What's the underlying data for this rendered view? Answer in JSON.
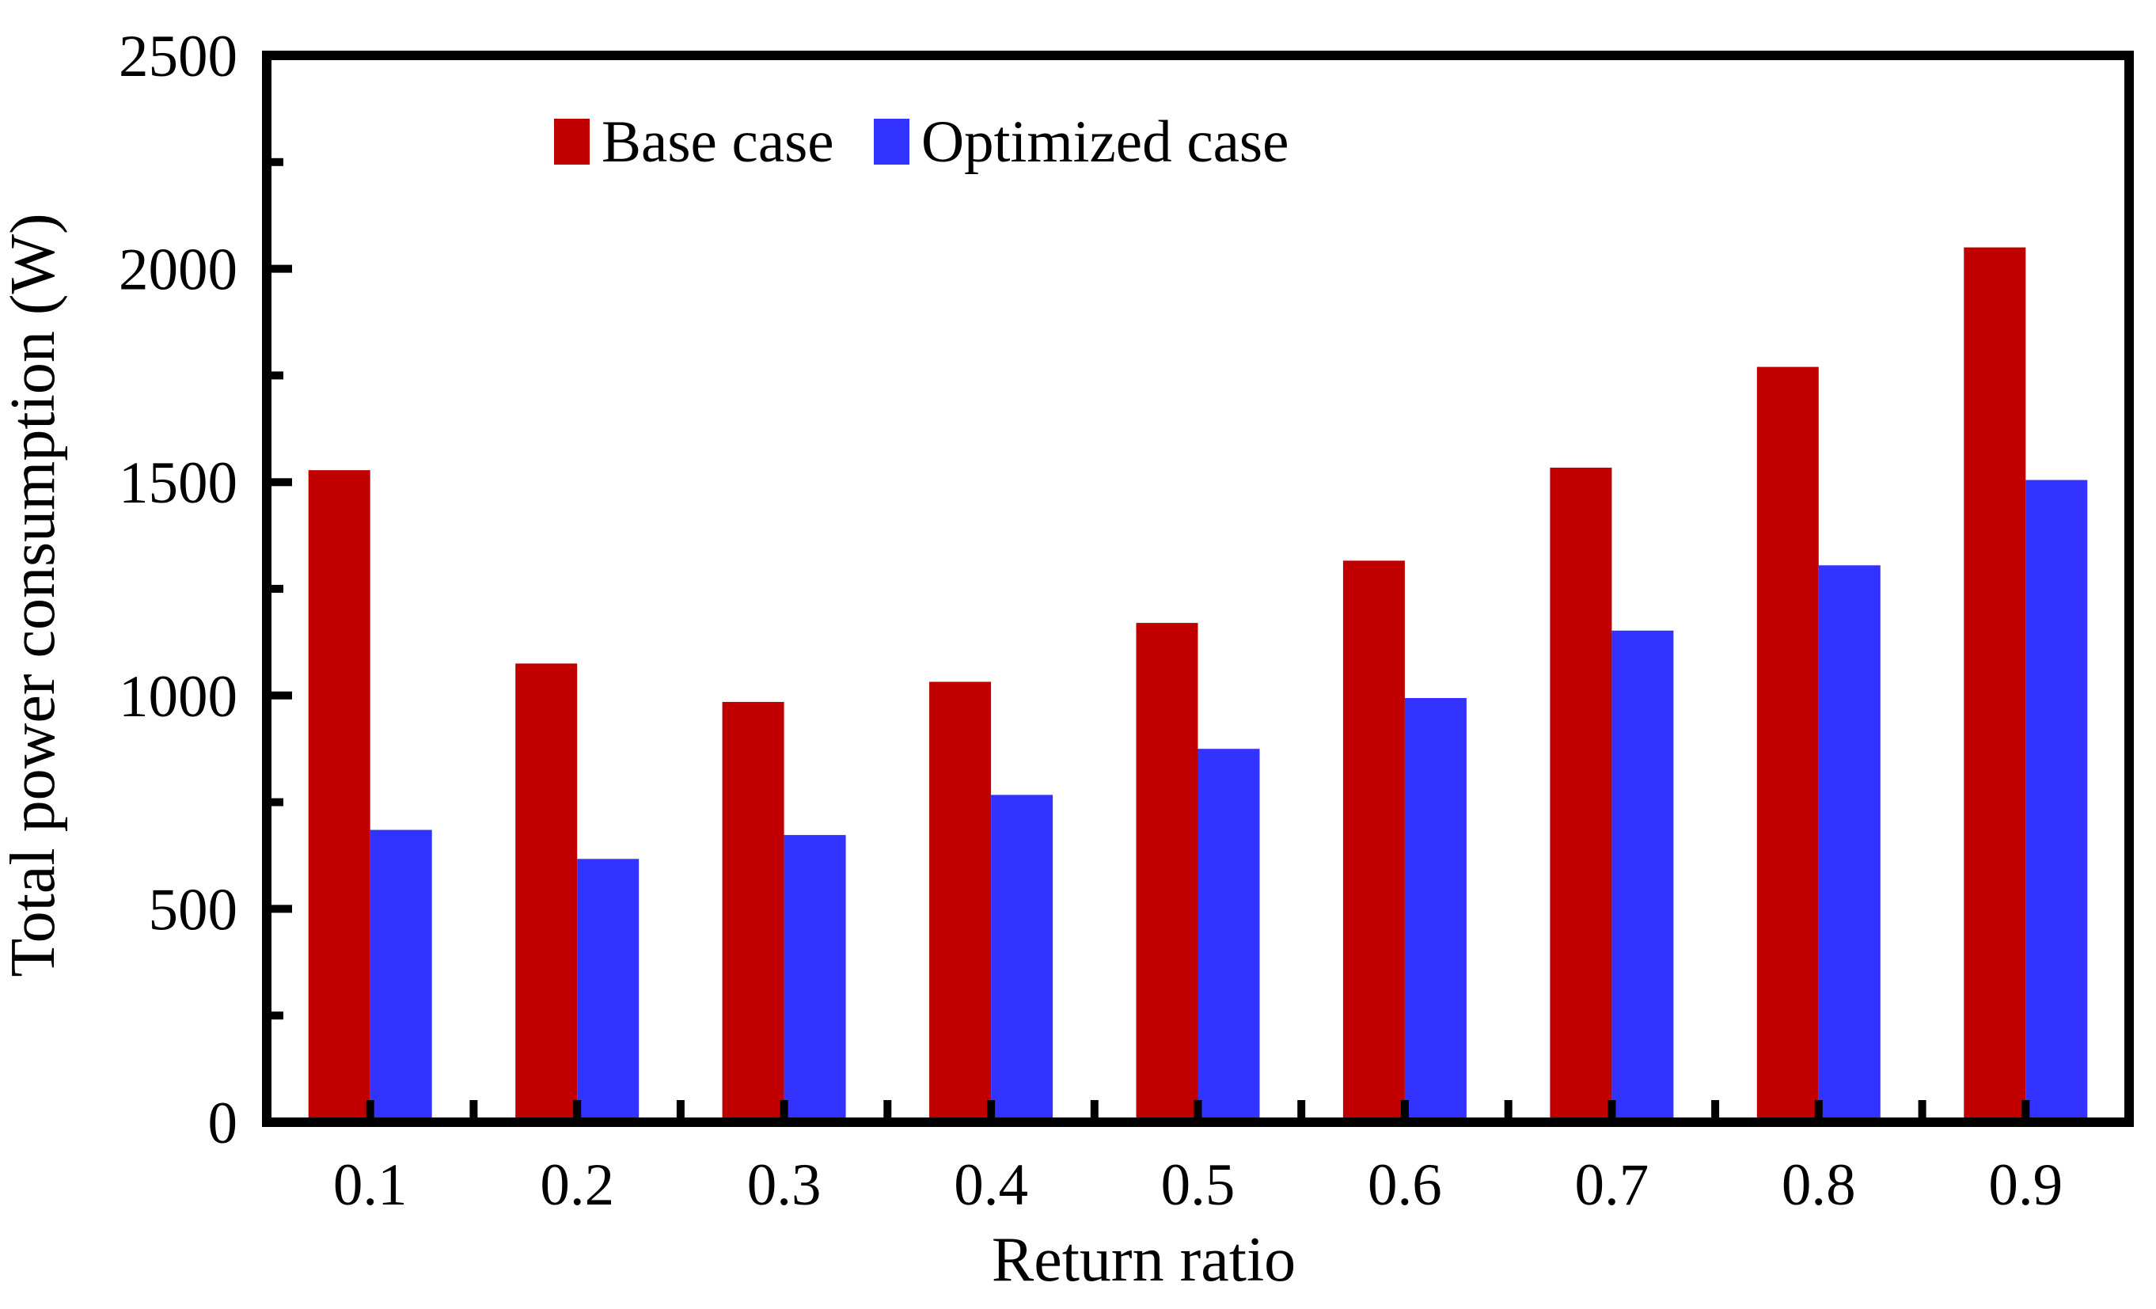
{
  "chart_data": {
    "type": "bar",
    "title": "",
    "xlabel": "Return ratio",
    "ylabel": "Total power consumption (W)",
    "categories": [
      "0.1",
      "0.2",
      "0.3",
      "0.4",
      "0.5",
      "0.6",
      "0.7",
      "0.8",
      "0.9"
    ],
    "series": [
      {
        "name": "Base case",
        "color": "#C00000",
        "values": [
          1528,
          1075,
          985,
          1032,
          1170,
          1316,
          1534,
          1770,
          2050
        ]
      },
      {
        "name": "Optimized case",
        "color": "#3333FF",
        "values": [
          685,
          617,
          673,
          767,
          875,
          994,
          1152,
          1305,
          1505
        ]
      }
    ],
    "ylim": [
      0,
      2500
    ],
    "y_major_step": 500,
    "y_minor_step": 250,
    "y_tick_labels": [
      "0",
      "500",
      "1000",
      "1500",
      "2000",
      "2500"
    ],
    "grid": "off",
    "legend_position": "top-inside",
    "frame_color": "#000000",
    "background_color": "#ffffff"
  }
}
